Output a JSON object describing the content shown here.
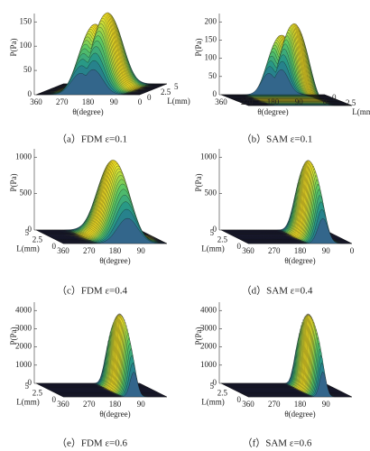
{
  "panels": [
    {
      "caption": "（a）FDM ε=0.1",
      "z_label": "P(Pa)",
      "theta_label": "θ(degree)",
      "l_label": "L(mm)",
      "z_ticks": [
        0,
        50,
        100,
        150
      ],
      "theta_ticks": [
        360,
        270,
        180,
        90,
        0
      ],
      "l_ticks": [
        0,
        2.5,
        5
      ]
    },
    {
      "caption": "（b）SAM ε=0.1",
      "z_label": "P(Pa)",
      "theta_label": "θ(degree)",
      "l_label": "L(mm)",
      "z_ticks": [
        0,
        50,
        100,
        150,
        200
      ],
      "theta_ticks": [
        360,
        270,
        180,
        90,
        0
      ],
      "l_ticks": [
        0,
        2.5
      ]
    },
    {
      "caption": "（c）FDM   ε=0.4",
      "z_label": "P(Pa)",
      "theta_label": "θ(degree)",
      "l_label": "L(mm)",
      "z_ticks": [
        0,
        500,
        1000
      ],
      "theta_ticks": [
        360,
        270,
        180,
        90
      ],
      "l_ticks": [
        0,
        2.5,
        5
      ]
    },
    {
      "caption": "（d）SAM ε=0.4",
      "z_label": "P(Pa)",
      "theta_label": "θ(degree)",
      "l_label": "L(mm)",
      "z_ticks": [
        0,
        500,
        1000
      ],
      "theta_ticks": [
        360,
        270,
        180,
        90,
        0
      ],
      "l_ticks": [
        0,
        2.5,
        5
      ]
    },
    {
      "caption": "（e）FDM ε=0.6",
      "z_label": "P(Pa)",
      "theta_label": "θ(degree)",
      "l_label": "L(mm)",
      "z_ticks": [
        0,
        1000,
        2000,
        3000,
        4000
      ],
      "theta_ticks": [
        360,
        270,
        180,
        90
      ],
      "l_ticks": [
        0,
        2.5,
        5
      ]
    },
    {
      "caption": "（f）SAM ε=0.6",
      "z_label": "P(Pa)",
      "theta_label": "θ(degree)",
      "l_label": "L(mm)",
      "z_ticks": [
        0,
        1000,
        2000,
        3000,
        4000
      ],
      "theta_ticks": [
        360,
        270,
        180,
        90
      ],
      "l_ticks": [
        0,
        2.5,
        5
      ]
    }
  ]
}
